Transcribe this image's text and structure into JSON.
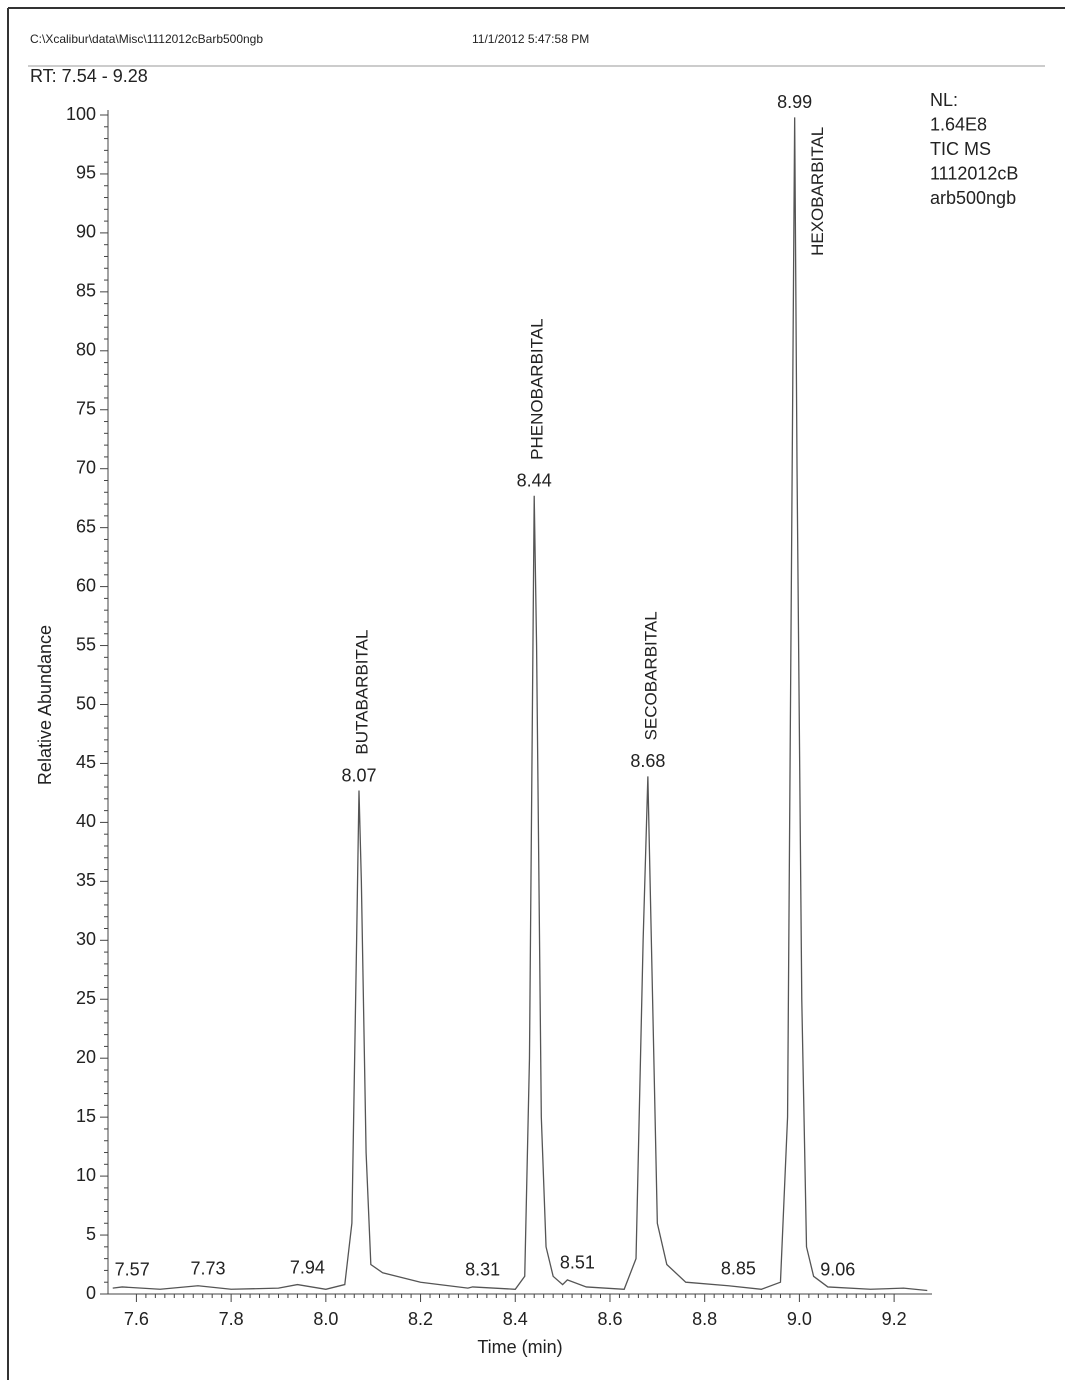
{
  "chart_data": {
    "type": "line",
    "header": [
      "C:\\Xcalibur\\data\\Misc\\1112012cBarb500ngb",
      "11/1/2012 5:47:58 PM"
    ],
    "range_label": "RT: 7.54 - 9.28",
    "info": [
      "NL:",
      "1.64E8",
      "TIC  MS",
      "1112012cB",
      "arb500ngb"
    ],
    "xlabel": "Time (min)",
    "ylabel": "Relative Abundance",
    "color": "#555555",
    "x": [
      7.55,
      7.57,
      7.65,
      7.73,
      7.8,
      7.9,
      7.94,
      8.0,
      8.04,
      8.055,
      8.065,
      8.07,
      8.075,
      8.085,
      8.095,
      8.12,
      8.2,
      8.3,
      8.31,
      8.4,
      8.42,
      8.43,
      8.44,
      8.445,
      8.455,
      8.465,
      8.48,
      8.5,
      8.51,
      8.55,
      8.63,
      8.655,
      8.67,
      8.68,
      8.69,
      8.7,
      8.72,
      8.76,
      8.85,
      8.92,
      8.96,
      8.975,
      8.99,
      8.995,
      9.005,
      9.015,
      9.03,
      9.06,
      9.15,
      9.22,
      9.27
    ],
    "values": [
      0.5,
      0.6,
      0.4,
      0.7,
      0.4,
      0.5,
      0.8,
      0.4,
      0.8,
      6,
      30,
      42.7,
      35,
      12,
      2.5,
      1.8,
      1.0,
      0.5,
      0.6,
      0.4,
      1.5,
      20,
      67.7,
      55,
      15,
      4,
      1.5,
      0.8,
      1.2,
      0.6,
      0.4,
      3,
      30,
      43.9,
      25,
      6,
      2.5,
      1.0,
      0.7,
      0.4,
      1.0,
      15,
      99.8,
      70,
      25,
      4,
      1.5,
      0.6,
      0.4,
      0.5,
      0.3
    ],
    "peaks": [
      {
        "x": 7.57,
        "y": 0.6
      },
      {
        "x": 7.73,
        "y": 0.7
      },
      {
        "x": 7.94,
        "y": 0.8
      },
      {
        "x": 8.07,
        "y": 42.7,
        "compound": "BUTABARBITAL"
      },
      {
        "x": 8.31,
        "y": 0.6
      },
      {
        "x": 8.44,
        "y": 67.7,
        "compound": "PHENOBARBITAL"
      },
      {
        "x": 8.51,
        "y": 1.2
      },
      {
        "x": 8.68,
        "y": 43.9,
        "compound": "SECOBARBITAL"
      },
      {
        "x": 8.85,
        "y": 0.7
      },
      {
        "x": 8.99,
        "y": 99.8,
        "compound": "HEXOBARBITAL"
      },
      {
        "x": 9.06,
        "y": 0.6
      }
    ],
    "xlim": [
      7.54,
      9.28
    ],
    "ylim": [
      0,
      100
    ],
    "xticks": [
      7.6,
      7.8,
      {
        "value": 8,
        "label": "8.0"
      },
      8.2,
      8.4,
      8.6,
      8.8,
      {
        "value": 9,
        "label": "9.0"
      },
      9.2
    ],
    "yticks": [
      0,
      5,
      10,
      15,
      20,
      25,
      30,
      35,
      40,
      45,
      50,
      55,
      60,
      65,
      70,
      75,
      80,
      85,
      90,
      95,
      100
    ]
  }
}
